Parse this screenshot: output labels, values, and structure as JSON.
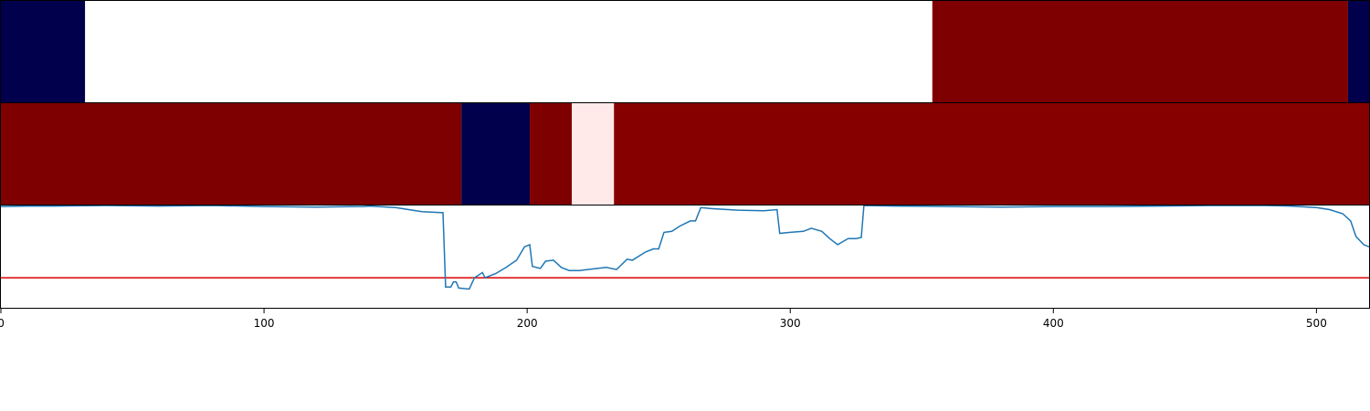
{
  "chart_data": [
    {
      "type": "heatmap",
      "row": 1,
      "xlim": [
        0,
        520
      ],
      "segments": [
        {
          "start": 0,
          "end": 32,
          "color": "#00004c"
        },
        {
          "start": 32,
          "end": 354,
          "color": "#ffffff"
        },
        {
          "start": 354,
          "end": 512,
          "color": "#7f0000"
        },
        {
          "start": 512,
          "end": 520,
          "color": "#00004c"
        }
      ]
    },
    {
      "type": "heatmap",
      "row": 2,
      "xlim": [
        0,
        520
      ],
      "segments": [
        {
          "start": 0,
          "end": 175,
          "color": "#7f0000"
        },
        {
          "start": 175,
          "end": 201,
          "color": "#00004c"
        },
        {
          "start": 201,
          "end": 217,
          "color": "#7f0000"
        },
        {
          "start": 217,
          "end": 233,
          "color": "#ffe9e9"
        },
        {
          "start": 233,
          "end": 520,
          "color": "#870000"
        }
      ]
    },
    {
      "type": "line",
      "xlim": [
        0,
        520
      ],
      "ylim": [
        0,
        1
      ],
      "xticks": [
        0,
        100,
        200,
        300,
        400,
        500
      ],
      "threshold": {
        "value": 0.3,
        "color": "#dd0000"
      },
      "series": [
        {
          "color": "#1f77b4",
          "points": [
            [
              0,
              0.99
            ],
            [
              10,
              0.995
            ],
            [
              20,
              0.995
            ],
            [
              40,
              1.0
            ],
            [
              60,
              0.995
            ],
            [
              80,
              1.0
            ],
            [
              100,
              0.99
            ],
            [
              120,
              0.985
            ],
            [
              138,
              0.99
            ],
            [
              140,
              0.995
            ],
            [
              150,
              0.98
            ],
            [
              155,
              0.96
            ],
            [
              160,
              0.94
            ],
            [
              168,
              0.93
            ],
            [
              169,
              0.21
            ],
            [
              171,
              0.21
            ],
            [
              172,
              0.26
            ],
            [
              173,
              0.26
            ],
            [
              174,
              0.2
            ],
            [
              178,
              0.19
            ],
            [
              180,
              0.3
            ],
            [
              183,
              0.35
            ],
            [
              184,
              0.3
            ],
            [
              188,
              0.34
            ],
            [
              192,
              0.4
            ],
            [
              196,
              0.47
            ],
            [
              199,
              0.6
            ],
            [
              201,
              0.62
            ],
            [
              202,
              0.41
            ],
            [
              205,
              0.39
            ],
            [
              207,
              0.46
            ],
            [
              210,
              0.47
            ],
            [
              213,
              0.4
            ],
            [
              216,
              0.37
            ],
            [
              220,
              0.37
            ],
            [
              230,
              0.4
            ],
            [
              234,
              0.38
            ],
            [
              238,
              0.48
            ],
            [
              240,
              0.47
            ],
            [
              245,
              0.55
            ],
            [
              248,
              0.58
            ],
            [
              250,
              0.58
            ],
            [
              252,
              0.74
            ],
            [
              255,
              0.75
            ],
            [
              258,
              0.8
            ],
            [
              262,
              0.85
            ],
            [
              264,
              0.85
            ],
            [
              266,
              0.98
            ],
            [
              270,
              0.97
            ],
            [
              280,
              0.955
            ],
            [
              290,
              0.95
            ],
            [
              295,
              0.96
            ],
            [
              296,
              0.73
            ],
            [
              300,
              0.74
            ],
            [
              305,
              0.75
            ],
            [
              308,
              0.78
            ],
            [
              312,
              0.75
            ],
            [
              315,
              0.68
            ],
            [
              318,
              0.62
            ],
            [
              322,
              0.68
            ],
            [
              325,
              0.68
            ],
            [
              327,
              0.69
            ],
            [
              328,
              1.0
            ],
            [
              340,
              0.995
            ],
            [
              360,
              0.99
            ],
            [
              380,
              0.985
            ],
            [
              400,
              0.99
            ],
            [
              420,
              0.99
            ],
            [
              440,
              0.995
            ],
            [
              460,
              1.0
            ],
            [
              480,
              1.0
            ],
            [
              490,
              0.995
            ],
            [
              500,
              0.98
            ],
            [
              505,
              0.96
            ],
            [
              510,
              0.92
            ],
            [
              513,
              0.85
            ],
            [
              515,
              0.7
            ],
            [
              518,
              0.62
            ],
            [
              520,
              0.6
            ]
          ]
        }
      ]
    }
  ]
}
